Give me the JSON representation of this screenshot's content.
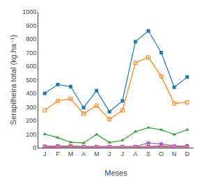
{
  "chart_data": {
    "type": "line",
    "categories": [
      "J",
      "F",
      "M",
      "A",
      "M",
      "J",
      "J",
      "A",
      "S",
      "O",
      "N",
      "D"
    ],
    "series": [
      {
        "values": [
          400,
          465,
          450,
          295,
          420,
          265,
          345,
          780,
          860,
          700,
          445,
          520
        ],
        "marker": "square"
      },
      {
        "values": [
          275,
          345,
          360,
          250,
          310,
          210,
          275,
          625,
          665,
          525,
          325,
          335
        ],
        "marker": "square-open"
      },
      {
        "values": [
          100,
          75,
          40,
          35,
          98,
          38,
          55,
          118,
          148,
          132,
          98,
          132
        ],
        "marker": "triangle-up"
      },
      {
        "values": [
          10,
          12,
          12,
          8,
          8,
          8,
          8,
          8,
          8,
          12,
          8,
          12
        ],
        "marker": "square"
      },
      {
        "values": [
          8,
          8,
          8,
          8,
          8,
          8,
          8,
          8,
          35,
          28,
          15,
          8
        ],
        "marker": "x"
      },
      {
        "values": [
          5,
          5,
          5,
          5,
          5,
          5,
          5,
          5,
          5,
          5,
          5,
          8
        ],
        "marker": "circle-open"
      },
      {
        "values": [
          5,
          5,
          5,
          5,
          5,
          5,
          5,
          5,
          5,
          5,
          8,
          5
        ],
        "marker": "circle"
      }
    ],
    "xlabel": "Meses",
    "ylabel": "Serapilheira total (kg.ha⁻¹)",
    "ylim": [
      0,
      1000
    ],
    "yticks": [
      0,
      100,
      200,
      300,
      400,
      500,
      600,
      700,
      800,
      900,
      1000
    ],
    "grid": false
  }
}
